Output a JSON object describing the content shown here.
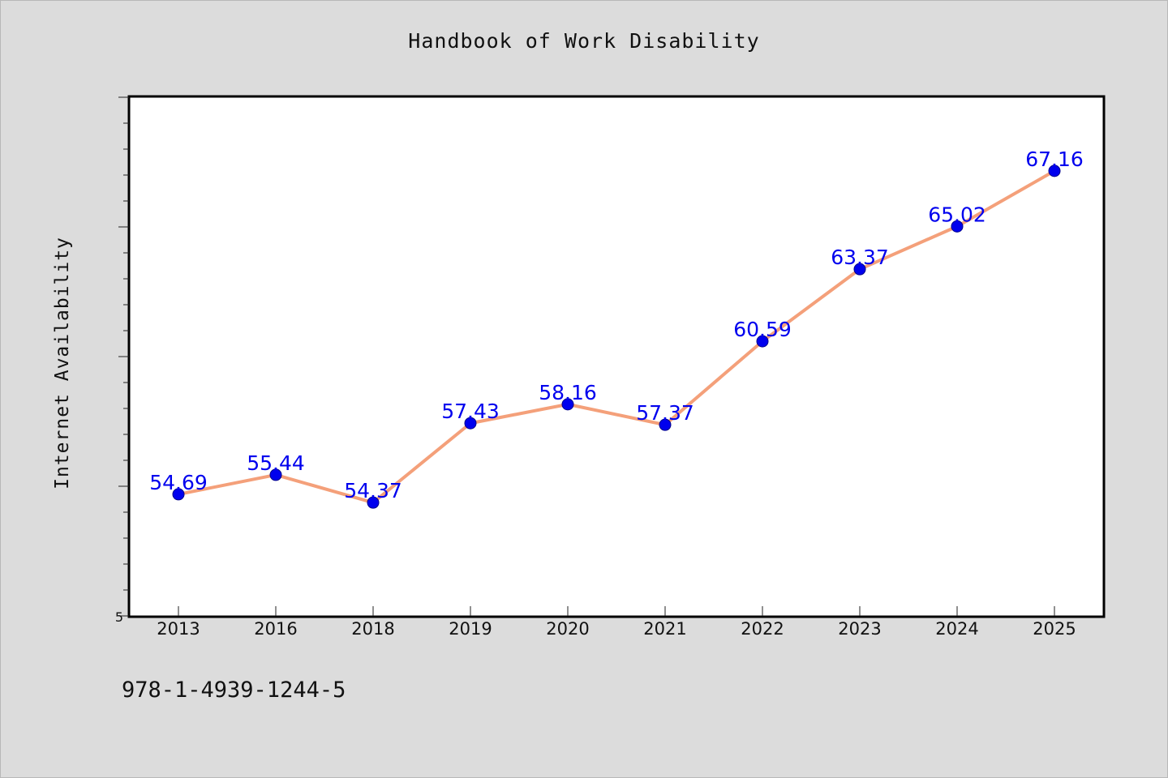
{
  "chart_data": {
    "type": "line",
    "title": "Handbook of Work Disability",
    "xlabel": "",
    "ylabel": "Internet Availability",
    "categories": [
      "2013",
      "2016",
      "2018",
      "2019",
      "2020",
      "2021",
      "2022",
      "2023",
      "2024",
      "2025"
    ],
    "series": [
      {
        "values": [
          54.69,
          55.44,
          54.37,
          57.43,
          58.16,
          57.37,
          60.59,
          63.37,
          65.02,
          67.16
        ],
        "data_labels": [
          "54.69",
          "55.44",
          "54.37",
          "57.43",
          "58.16",
          "57.37",
          "60.59",
          "63.37",
          "65.02",
          "67.16"
        ],
        "line_color": "#f4a07a",
        "marker_color": "#0000ee",
        "label_color": "#0000ee"
      }
    ],
    "y_tick_labels": [
      "5"
    ],
    "ylim": [
      50,
      70
    ],
    "grid": false,
    "legend": "none"
  },
  "footer": {
    "code": "978-1-4939-1244-5"
  }
}
